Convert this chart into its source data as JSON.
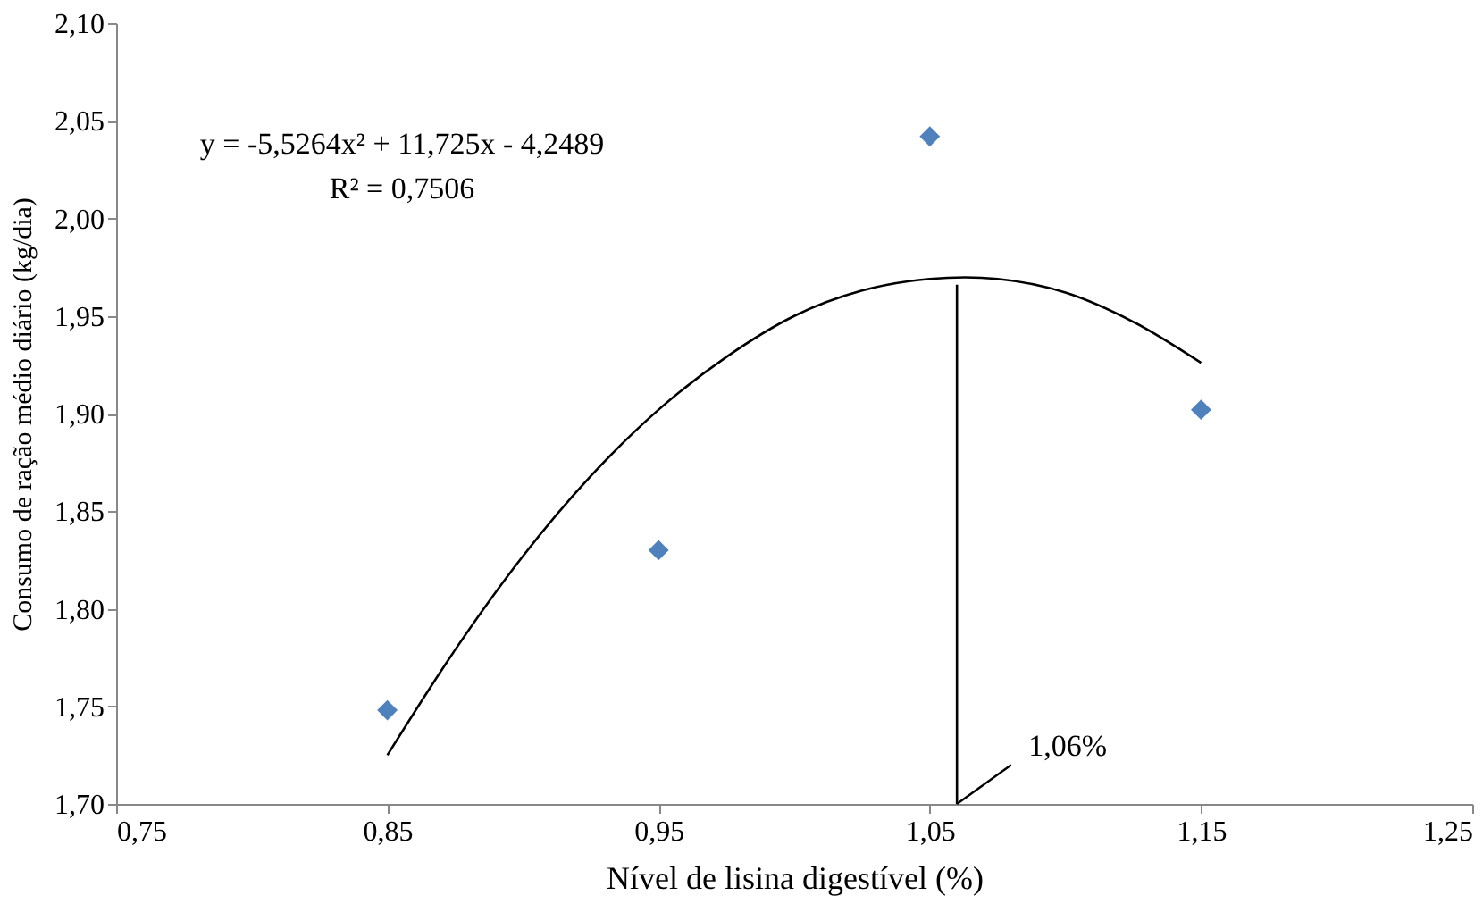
{
  "chart_data": {
    "type": "scatter",
    "xlabel": "Nível de lisina digestível (%)",
    "ylabel": "Consumo de ração médio diário (kg/dia)",
    "series": [
      {
        "color": "#4f81bd",
        "marker": "diamond",
        "x": [
          0.85,
          0.95,
          1.05,
          1.15
        ],
        "values": [
          1.748,
          1.83,
          2.042,
          1.902
        ]
      },
      {
        "type": "line",
        "color": "#000000",
        "marker": "none",
        "x": [
          0.85,
          0.875,
          0.9,
          0.925,
          0.95,
          0.975,
          1.0,
          1.025,
          1.05,
          1.075,
          1.1,
          1.125,
          1.15
        ],
        "values": [
          1.725,
          1.779,
          1.827,
          1.868,
          1.902,
          1.929,
          1.95,
          1.963,
          1.969,
          1.969,
          1.962,
          1.947,
          1.926
        ],
        "line_style": "solid"
      },
      {
        "type": "line",
        "color": "#000000",
        "marker": "none",
        "x": [
          1.06,
          1.06
        ],
        "values": [
          1.7,
          1.966
        ],
        "line_style": "solid"
      }
    ],
    "xlim": [
      0.75,
      1.25
    ],
    "ylim": [
      1.7,
      2.1
    ],
    "xticks": [
      {
        "value": 0.75,
        "label": "0,75"
      },
      {
        "value": 0.85,
        "label": "0,85"
      },
      {
        "value": 0.95,
        "label": "0,95"
      },
      {
        "value": 1.05,
        "label": "1,05"
      },
      {
        "value": 1.15,
        "label": "1,15"
      },
      {
        "value": 1.25,
        "label": "1,25"
      }
    ],
    "yticks": [
      {
        "value": 1.7,
        "label": "1,70"
      },
      {
        "value": 1.75,
        "label": "1,75"
      },
      {
        "value": 1.8,
        "label": "1,80"
      },
      {
        "value": 1.85,
        "label": "1,85"
      },
      {
        "value": 1.9,
        "label": "1,90"
      },
      {
        "value": 1.95,
        "label": "1,95"
      },
      {
        "value": 2.0,
        "label": "2,00"
      },
      {
        "value": 2.05,
        "label": "2,05"
      },
      {
        "value": 2.1,
        "label": "2,10"
      }
    ],
    "annotations": [
      "y = -5,5264x² + 11,725x - 4,2489",
      "R² = 0,7506",
      {
        "text": "1,06%",
        "x": 1.06,
        "y": 1.7
      }
    ],
    "grid": false
  }
}
